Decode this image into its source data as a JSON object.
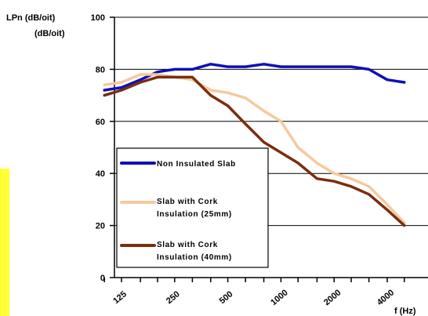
{
  "chart_data": {
    "type": "line",
    "ylabel_line1": "LPn (dB/oit)",
    "ylabel_line2": "(dB/oit)",
    "xlabel": "f (Hz)",
    "ylim": [
      0,
      100
    ],
    "y_ticks": [
      0,
      20,
      40,
      60,
      80,
      100
    ],
    "x_tick_labels": [
      "125",
      "250",
      "500",
      "1000",
      "2000",
      "4000"
    ],
    "grid": "horizontal",
    "legend_placement": "left-center",
    "x": [
      100,
      125,
      160,
      200,
      250,
      315,
      400,
      500,
      630,
      800,
      1000,
      1250,
      1600,
      2000,
      2500,
      3150,
      4000,
      5000
    ],
    "series": [
      {
        "name": "Non Insulated Slab",
        "color": "#1010b8",
        "values": [
          72,
          73,
          76,
          79,
          80,
          80,
          82,
          81,
          81,
          82,
          81,
          81,
          81,
          81,
          81,
          80,
          76,
          75
        ]
      },
      {
        "name": "Slab with Cork Insulation (25mm)",
        "color": "#f5c9a0",
        "values": [
          74,
          75,
          78,
          78,
          77,
          76,
          72,
          71,
          69,
          64,
          60,
          50,
          44,
          40,
          38,
          35,
          28,
          21
        ]
      },
      {
        "name": "Slab with Cork Insulation (40mm)",
        "color": "#7a2e10",
        "values": [
          70,
          72,
          75,
          77,
          77,
          77,
          70,
          66,
          59,
          52,
          48,
          44,
          38,
          37,
          35,
          32,
          26,
          20
        ]
      }
    ],
    "legend": [
      {
        "label": "Non Insulated Slab"
      },
      {
        "label_line1": "Slab with Cork",
        "label_line2": "Insulation (25mm)"
      },
      {
        "label_line1": "Slab with Cork",
        "label_line2": "Insulation (40mm)"
      }
    ]
  }
}
